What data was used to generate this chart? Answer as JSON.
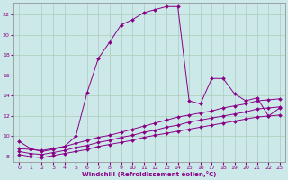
{
  "background_color": "#cce8e8",
  "grid_color": "#aaccaa",
  "line_color": "#880088",
  "marker_color": "#880088",
  "xlabel": "Windchill (Refroidissement éolien,°C)",
  "xlim": [
    -0.5,
    23.5
  ],
  "ylim": [
    7.5,
    23.2
  ],
  "yticks": [
    8,
    10,
    12,
    14,
    16,
    18,
    20,
    22
  ],
  "xticks": [
    0,
    1,
    2,
    3,
    4,
    5,
    6,
    7,
    8,
    9,
    10,
    11,
    12,
    13,
    14,
    15,
    16,
    17,
    18,
    19,
    20,
    21,
    22,
    23
  ],
  "series": [
    {
      "x": [
        0,
        1,
        2,
        3,
        4,
        5,
        6,
        7,
        8,
        9,
        10,
        11,
        12,
        13,
        14,
        15,
        16,
        17,
        18,
        19,
        20,
        21,
        22,
        23
      ],
      "y": [
        9.5,
        8.8,
        8.5,
        8.7,
        9.0,
        10.0,
        14.3,
        17.7,
        19.3,
        21.0,
        21.5,
        22.2,
        22.5,
        22.8,
        22.8,
        13.5,
        13.2,
        15.7,
        15.7,
        14.2,
        13.5,
        13.8,
        12.0,
        12.8
      ]
    },
    {
      "x": [
        0,
        1,
        2,
        3,
        4,
        5,
        6,
        7,
        8,
        9,
        10,
        11,
        12,
        13,
        14,
        15,
        16,
        17,
        18,
        19,
        20,
        21,
        22,
        23
      ],
      "y": [
        8.8,
        8.7,
        8.6,
        8.8,
        9.0,
        9.3,
        9.6,
        9.9,
        10.1,
        10.4,
        10.7,
        11.0,
        11.3,
        11.6,
        11.9,
        12.1,
        12.3,
        12.5,
        12.8,
        13.0,
        13.2,
        13.5,
        13.6,
        13.7
      ]
    },
    {
      "x": [
        0,
        1,
        2,
        3,
        4,
        5,
        6,
        7,
        8,
        9,
        10,
        11,
        12,
        13,
        14,
        15,
        16,
        17,
        18,
        19,
        20,
        21,
        22,
        23
      ],
      "y": [
        8.5,
        8.3,
        8.2,
        8.4,
        8.6,
        8.9,
        9.1,
        9.4,
        9.6,
        9.9,
        10.1,
        10.4,
        10.6,
        10.9,
        11.1,
        11.4,
        11.6,
        11.8,
        12.0,
        12.2,
        12.4,
        12.7,
        12.8,
        12.9
      ]
    },
    {
      "x": [
        0,
        1,
        2,
        3,
        4,
        5,
        6,
        7,
        8,
        9,
        10,
        11,
        12,
        13,
        14,
        15,
        16,
        17,
        18,
        19,
        20,
        21,
        22,
        23
      ],
      "y": [
        8.2,
        8.0,
        7.9,
        8.1,
        8.3,
        8.5,
        8.7,
        9.0,
        9.2,
        9.4,
        9.6,
        9.9,
        10.1,
        10.3,
        10.5,
        10.7,
        10.9,
        11.1,
        11.3,
        11.5,
        11.7,
        11.9,
        12.0,
        12.1
      ]
    }
  ]
}
